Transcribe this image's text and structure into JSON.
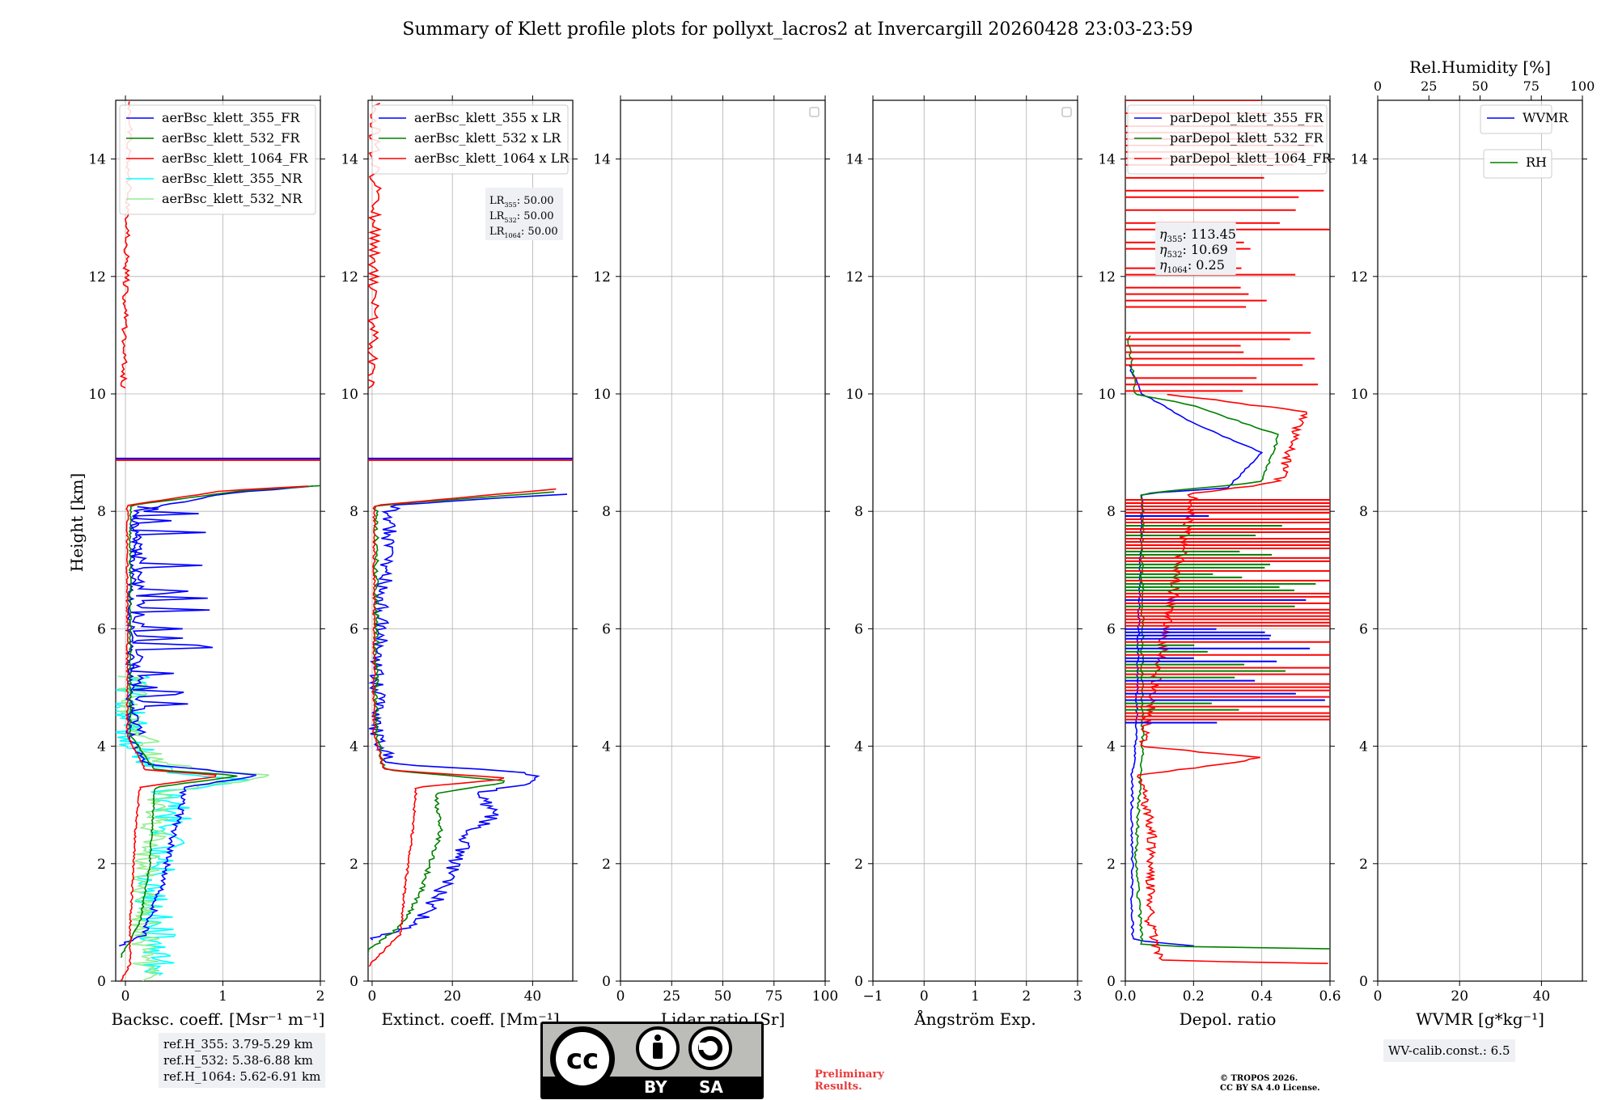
{
  "title": "Summary of Klett profile plots for pollyxt_lacros2 at Invercargill 20260428 23:03-23:59",
  "y_axis_label": "Height [km]",
  "y_ticks": [
    "0",
    "2",
    "4",
    "6",
    "8",
    "10",
    "12",
    "14"
  ],
  "colors": {
    "blue": "#0000ff",
    "green": "#008000",
    "red": "#ff0000",
    "cyan": "#00ffff",
    "lightgreen": "#90ee90",
    "brown": "#8b4513"
  },
  "ref_heights": [
    "ref.H_355: 3.79-5.29 km",
    "ref.H_532: 5.38-6.88 km",
    "ref.H_1064: 5.62-6.91 km"
  ],
  "license_badge": {
    "left": "BY",
    "right": "SA",
    "icon_left": "cc-icon",
    "icon_mid": "person-icon",
    "icon_right": "share-alike-icon"
  },
  "preliminary": [
    "Preliminary",
    "Results."
  ],
  "copyright": [
    "© TROPOS 2026.",
    "CC BY SA 4.0 License."
  ],
  "wv_calib": "WV-calib.const.: 6.5",
  "chart_data": [
    {
      "type": "line",
      "xlabel": "Backsc. coeff. [Msr⁻¹ m⁻¹]",
      "xlim": [
        -0.1,
        2
      ],
      "ylim": [
        0,
        15
      ],
      "x_ticks": [
        "0",
        "1",
        "2"
      ],
      "legend_position": "top-left",
      "series": [
        {
          "name": "aerBsc_klett_355_FR",
          "color": "#0000ff"
        },
        {
          "name": "aerBsc_klett_532_FR",
          "color": "#008000"
        },
        {
          "name": "aerBsc_klett_1064_FR",
          "color": "#ff0000"
        },
        {
          "name": "aerBsc_klett_355_NR",
          "color": "#00ffff"
        },
        {
          "name": "aerBsc_klett_532_NR",
          "color": "#90ee90"
        }
      ]
    },
    {
      "type": "line",
      "xlabel": "Extinct. coeff. [Mm⁻¹]",
      "xlim": [
        -1,
        50
      ],
      "ylim": [
        0,
        15
      ],
      "x_ticks": [
        "0",
        "20",
        "40"
      ],
      "legend_position": "top-left",
      "series": [
        {
          "name": "aerBsc_klett_355 x LR",
          "color": "#0000ff"
        },
        {
          "name": "aerBsc_klett_532 x LR",
          "color": "#008000"
        },
        {
          "name": "aerBsc_klett_1064 x LR",
          "color": "#ff0000"
        }
      ],
      "annotation": [
        {
          "label": "LR",
          "sub": "355",
          "value": ": 50.00"
        },
        {
          "label": "LR",
          "sub": "532",
          "value": ": 50.00"
        },
        {
          "label": "LR",
          "sub": "1064",
          "value": ": 50.00"
        }
      ]
    },
    {
      "type": "line",
      "xlabel": "Lidar ratio [Sr]",
      "xlim": [
        0,
        100
      ],
      "ylim": [
        0,
        15
      ],
      "x_ticks": [
        "0",
        "25",
        "50",
        "75",
        "100"
      ],
      "series": []
    },
    {
      "type": "line",
      "xlabel": "Ångström Exp.",
      "xlim": [
        -1,
        3
      ],
      "ylim": [
        0,
        15
      ],
      "x_ticks": [
        "−1",
        "0",
        "1",
        "2",
        "3"
      ],
      "series": []
    },
    {
      "type": "line",
      "xlabel": "Depol. ratio",
      "xlim": [
        0,
        0.6
      ],
      "ylim": [
        0,
        15
      ],
      "x_ticks": [
        "0.0",
        "0.2",
        "0.4",
        "0.6"
      ],
      "legend_position": "top-left",
      "series": [
        {
          "name": "parDepol_klett_355_FR",
          "color": "#0000ff"
        },
        {
          "name": "parDepol_klett_532_FR",
          "color": "#008000"
        },
        {
          "name": "parDepol_klett_1064_FR",
          "color": "#ff0000"
        }
      ],
      "annotation": [
        {
          "label": "η",
          "sub": "355",
          "value": ": 113.45"
        },
        {
          "label": "η",
          "sub": "532",
          "value": ": 10.69"
        },
        {
          "label": "η",
          "sub": "1064",
          "value": ": 0.25"
        }
      ]
    },
    {
      "type": "line",
      "xlabel": "WVMR [g*kg⁻¹]",
      "xlim": [
        0,
        50
      ],
      "ylim": [
        0,
        15
      ],
      "x_ticks": [
        "0",
        "20",
        "40"
      ],
      "top_xlabel": "Rel.Humidity [%]",
      "top_xlim": [
        0,
        100
      ],
      "top_ticks": [
        "0",
        "25",
        "50",
        "75",
        "100"
      ],
      "series": [
        {
          "name": "WVMR",
          "color": "#0000ff"
        },
        {
          "name": "RH",
          "color": "#008000"
        }
      ]
    }
  ]
}
